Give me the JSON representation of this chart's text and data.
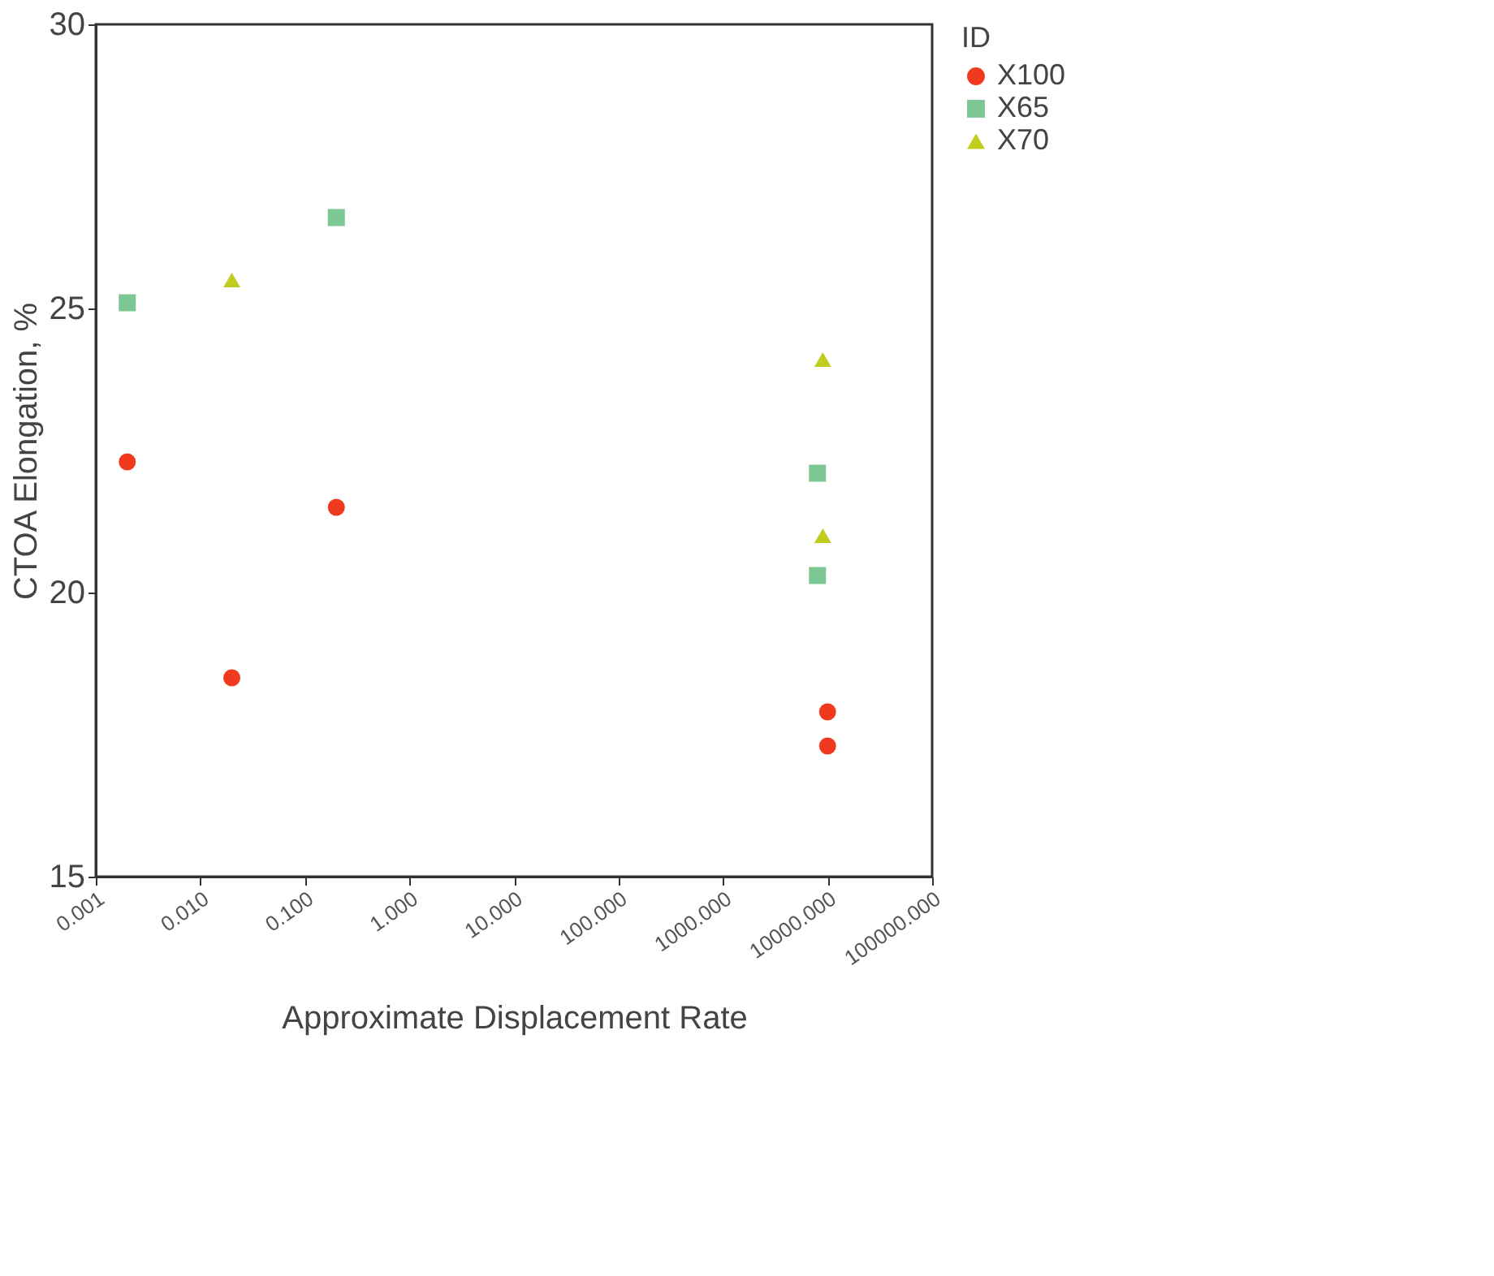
{
  "chart_data": {
    "type": "scatter",
    "xlabel": "Approximate Displacement Rate",
    "ylabel": "CTOA Elongation, %",
    "legend_title": "ID",
    "legend": "right",
    "grid": false,
    "log": "x",
    "xlim": [
      0.001,
      100000
    ],
    "ylim": [
      15,
      30
    ],
    "xticks": [
      {
        "value": 0.001,
        "label": "0.001"
      },
      {
        "value": 0.01,
        "label": "0.010"
      },
      {
        "value": 0.1,
        "label": "0.100"
      },
      {
        "value": 1,
        "label": "1.000"
      },
      {
        "value": 10,
        "label": "10.000"
      },
      {
        "value": 100,
        "label": "100.000"
      },
      {
        "value": 1000,
        "label": "1000.000"
      },
      {
        "value": 10000,
        "label": "10000.000"
      },
      {
        "value": 100000,
        "label": "100000.000"
      }
    ],
    "yticks": [
      15,
      20,
      25,
      30
    ],
    "series": [
      {
        "name": "X100",
        "color": "#f03a1e",
        "marker": "circle",
        "x": [
          0.002,
          0.02,
          0.2,
          10000,
          10000
        ],
        "values": [
          22.3,
          18.5,
          21.5,
          17.9,
          17.3
        ]
      },
      {
        "name": "X65",
        "color": "#7dc794",
        "marker": "square",
        "x": [
          0.002,
          0.2,
          8000,
          8000
        ],
        "values": [
          25.1,
          26.6,
          22.1,
          20.3
        ]
      },
      {
        "name": "X70",
        "color": "#c2cc1e",
        "marker": "triangle",
        "x": [
          0.02,
          9000,
          9000
        ],
        "values": [
          25.5,
          24.1,
          21.0
        ]
      }
    ]
  }
}
